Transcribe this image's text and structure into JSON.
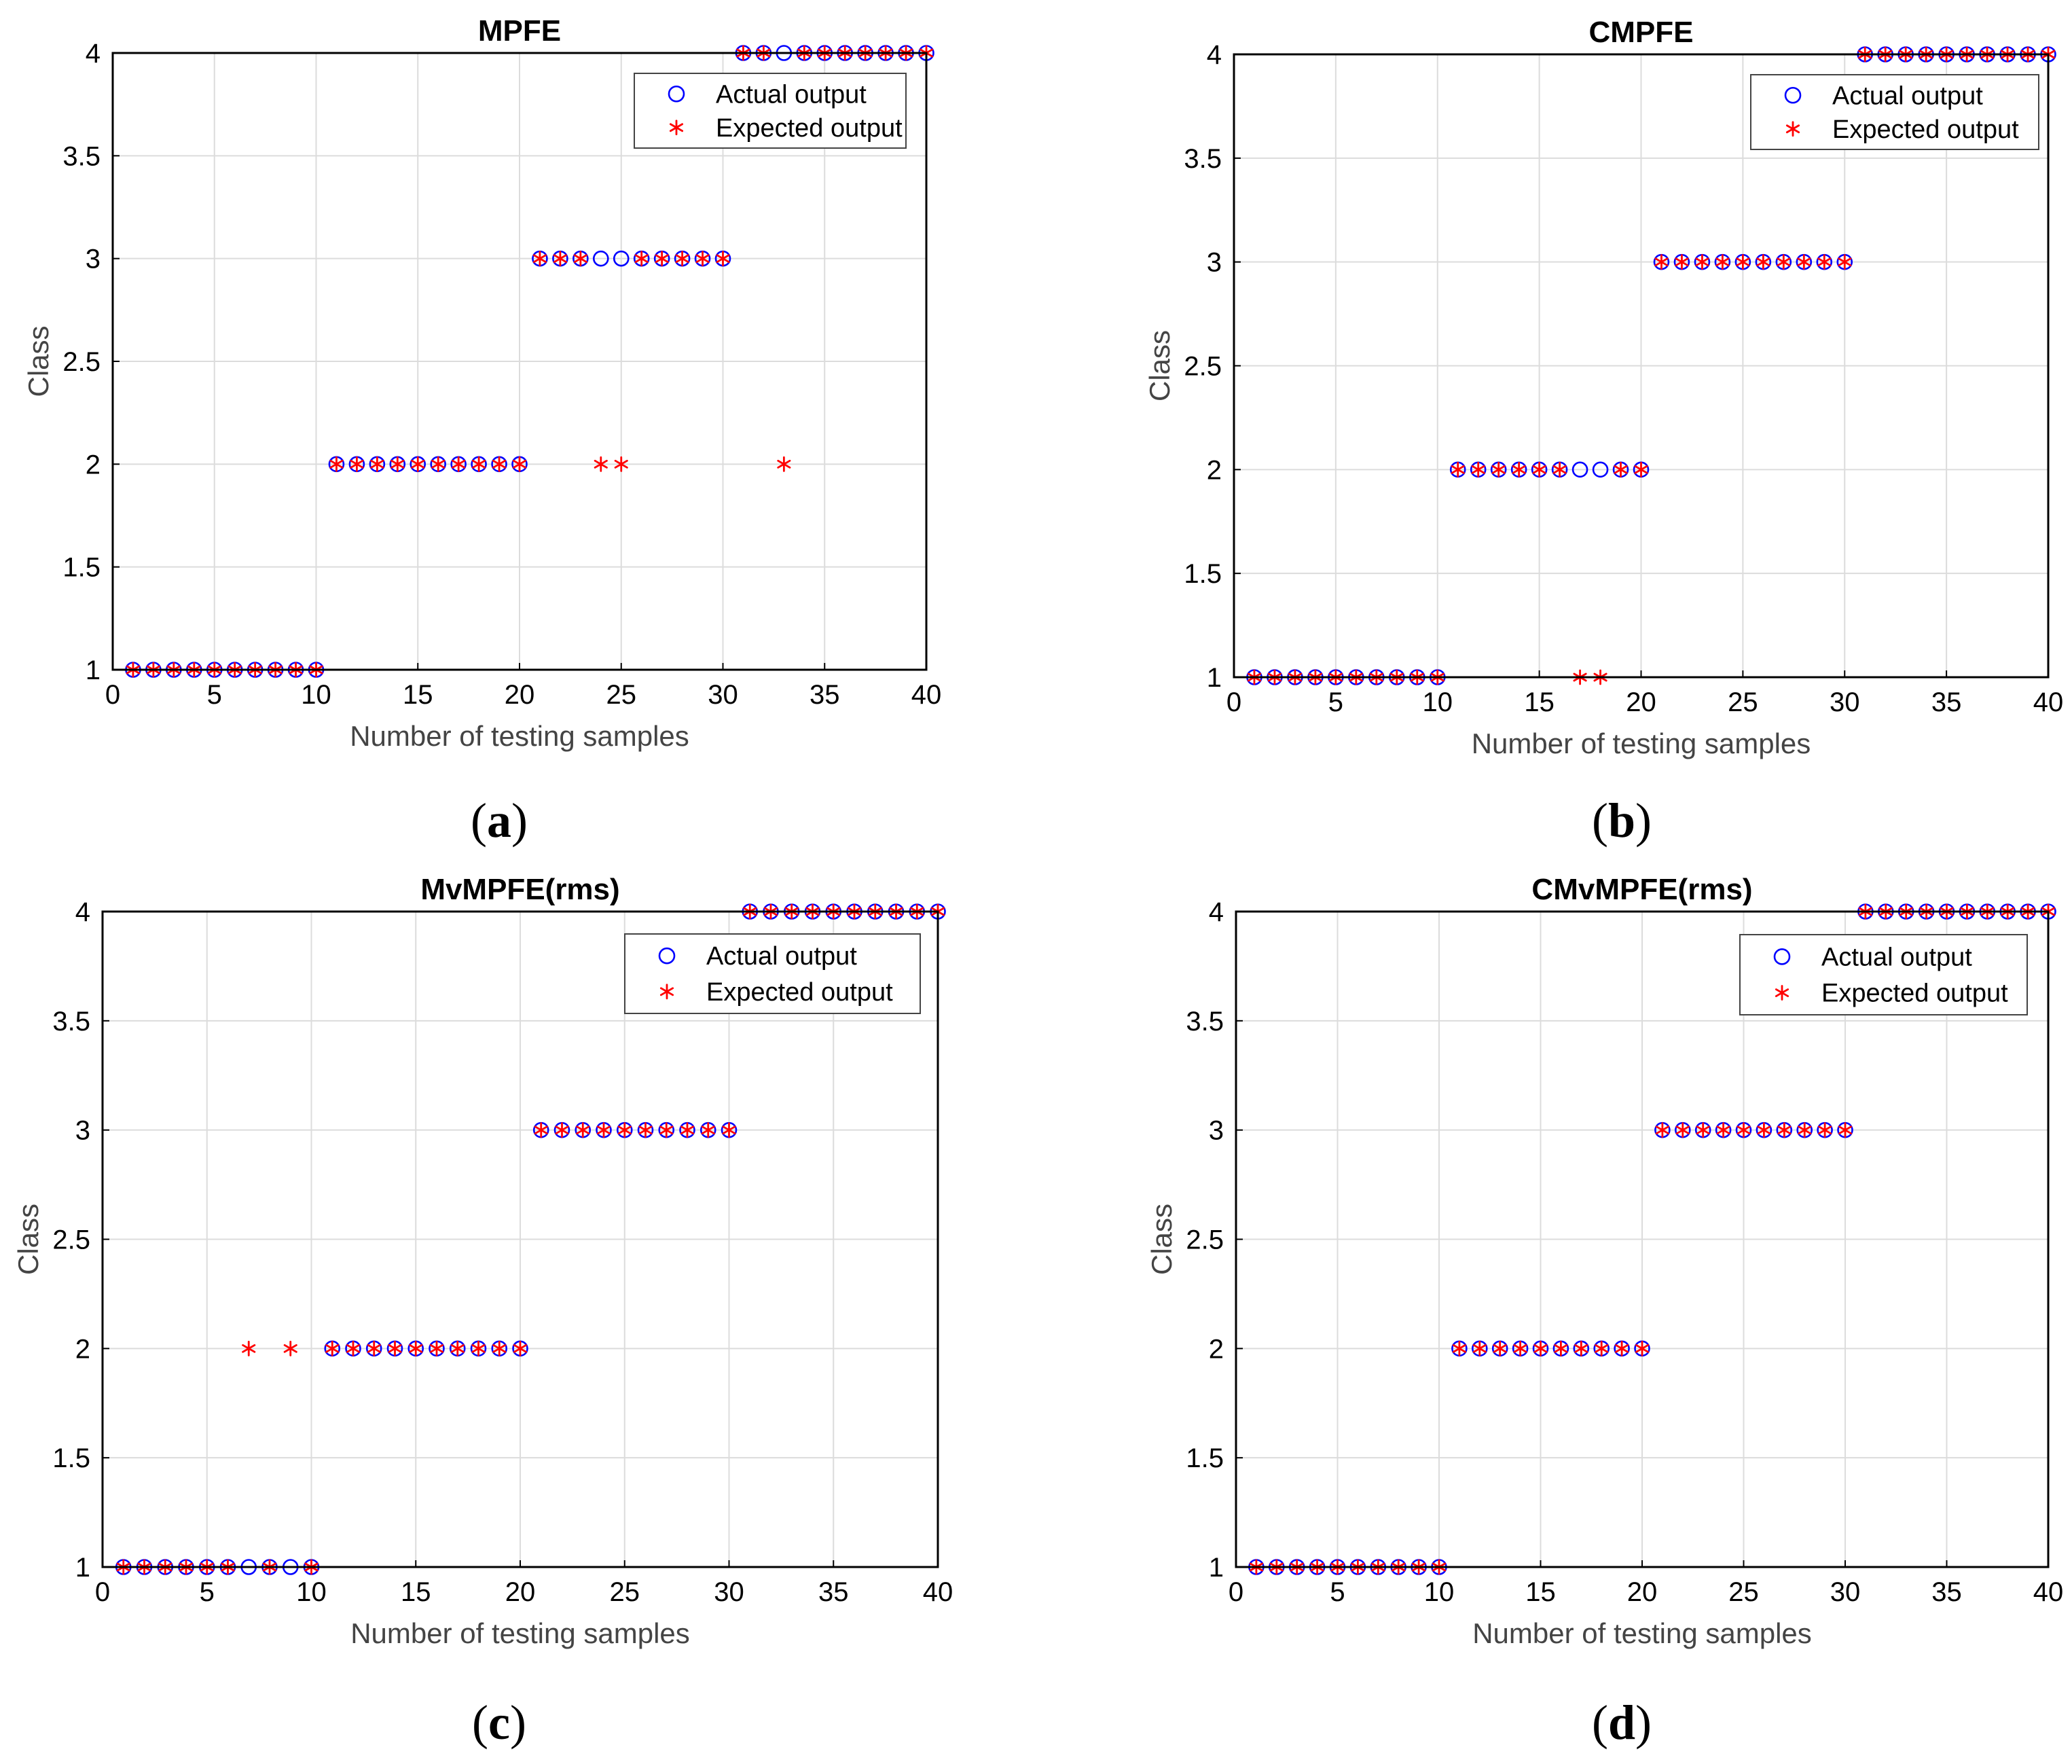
{
  "chart_data": [
    {
      "type": "scatter",
      "title": "MPFE",
      "caption": "a",
      "xlabel": "Number of testing samples",
      "ylabel": "Class",
      "xlim": [
        0,
        40
      ],
      "ylim": [
        1,
        4
      ],
      "xticks": [
        0,
        5,
        10,
        15,
        20,
        25,
        30,
        35,
        40
      ],
      "yticks": [
        1,
        1.5,
        2,
        2.5,
        3,
        3.5,
        4
      ],
      "legend": {
        "position": "top-right",
        "entries": [
          "Actual output",
          "Expected output"
        ]
      },
      "series": [
        {
          "name": "Actual output",
          "marker": "circle",
          "color": "#0000ff",
          "x": [
            1,
            2,
            3,
            4,
            5,
            6,
            7,
            8,
            9,
            10,
            11,
            12,
            13,
            14,
            15,
            16,
            17,
            18,
            19,
            20,
            21,
            22,
            23,
            24,
            25,
            26,
            27,
            28,
            29,
            30,
            31,
            32,
            33,
            34,
            35,
            36,
            37,
            38,
            39,
            40
          ],
          "y": [
            1,
            1,
            1,
            1,
            1,
            1,
            1,
            1,
            1,
            1,
            2,
            2,
            2,
            2,
            2,
            2,
            2,
            2,
            2,
            2,
            3,
            3,
            3,
            3,
            3,
            3,
            3,
            3,
            3,
            3,
            4,
            4,
            4,
            4,
            4,
            4,
            4,
            4,
            4,
            4
          ]
        },
        {
          "name": "Expected output",
          "marker": "asterisk",
          "color": "#ff0000",
          "x": [
            1,
            2,
            3,
            4,
            5,
            6,
            7,
            8,
            9,
            10,
            11,
            12,
            13,
            14,
            15,
            16,
            17,
            18,
            19,
            20,
            21,
            22,
            23,
            24,
            25,
            26,
            27,
            28,
            29,
            30,
            31,
            32,
            33,
            34,
            35,
            36,
            37,
            38,
            39,
            40
          ],
          "y": [
            1,
            1,
            1,
            1,
            1,
            1,
            1,
            1,
            1,
            1,
            2,
            2,
            2,
            2,
            2,
            2,
            2,
            2,
            2,
            2,
            3,
            3,
            3,
            2,
            2,
            3,
            3,
            3,
            3,
            3,
            4,
            4,
            2,
            4,
            4,
            4,
            4,
            4,
            4,
            4
          ]
        }
      ]
    },
    {
      "type": "scatter",
      "title": "CMPFE",
      "caption": "b",
      "xlabel": "Number of testing samples",
      "ylabel": "Class",
      "xlim": [
        0,
        40
      ],
      "ylim": [
        1,
        4
      ],
      "xticks": [
        0,
        5,
        10,
        15,
        20,
        25,
        30,
        35,
        40
      ],
      "yticks": [
        1,
        1.5,
        2,
        2.5,
        3,
        3.5,
        4
      ],
      "legend": {
        "position": "top-right",
        "entries": [
          "Actual output",
          "Expected output"
        ]
      },
      "series": [
        {
          "name": "Actual output",
          "marker": "circle",
          "color": "#0000ff",
          "x": [
            1,
            2,
            3,
            4,
            5,
            6,
            7,
            8,
            9,
            10,
            11,
            12,
            13,
            14,
            15,
            16,
            17,
            18,
            19,
            20,
            21,
            22,
            23,
            24,
            25,
            26,
            27,
            28,
            29,
            30,
            31,
            32,
            33,
            34,
            35,
            36,
            37,
            38,
            39,
            40
          ],
          "y": [
            1,
            1,
            1,
            1,
            1,
            1,
            1,
            1,
            1,
            1,
            2,
            2,
            2,
            2,
            2,
            2,
            2,
            2,
            2,
            2,
            3,
            3,
            3,
            3,
            3,
            3,
            3,
            3,
            3,
            3,
            4,
            4,
            4,
            4,
            4,
            4,
            4,
            4,
            4,
            4
          ]
        },
        {
          "name": "Expected output",
          "marker": "asterisk",
          "color": "#ff0000",
          "x": [
            1,
            2,
            3,
            4,
            5,
            6,
            7,
            8,
            9,
            10,
            11,
            12,
            13,
            14,
            15,
            16,
            17,
            18,
            19,
            20,
            21,
            22,
            23,
            24,
            25,
            26,
            27,
            28,
            29,
            30,
            31,
            32,
            33,
            34,
            35,
            36,
            37,
            38,
            39,
            40
          ],
          "y": [
            1,
            1,
            1,
            1,
            1,
            1,
            1,
            1,
            1,
            1,
            2,
            2,
            2,
            2,
            2,
            2,
            1,
            1,
            2,
            2,
            3,
            3,
            3,
            3,
            3,
            3,
            3,
            3,
            3,
            3,
            4,
            4,
            4,
            4,
            4,
            4,
            4,
            4,
            4,
            4
          ]
        }
      ]
    },
    {
      "type": "scatter",
      "title": "MvMPFE(rms)",
      "caption": "c",
      "xlabel": "Number of testing samples",
      "ylabel": "Class",
      "xlim": [
        0,
        40
      ],
      "ylim": [
        1,
        4
      ],
      "xticks": [
        0,
        5,
        10,
        15,
        20,
        25,
        30,
        35,
        40
      ],
      "yticks": [
        1,
        1.5,
        2,
        2.5,
        3,
        3.5,
        4
      ],
      "legend": {
        "position": "top-right",
        "entries": [
          "Actual output",
          "Expected output"
        ]
      },
      "series": [
        {
          "name": "Actual output",
          "marker": "circle",
          "color": "#0000ff",
          "x": [
            1,
            2,
            3,
            4,
            5,
            6,
            7,
            8,
            9,
            10,
            11,
            12,
            13,
            14,
            15,
            16,
            17,
            18,
            19,
            20,
            21,
            22,
            23,
            24,
            25,
            26,
            27,
            28,
            29,
            30,
            31,
            32,
            33,
            34,
            35,
            36,
            37,
            38,
            39,
            40
          ],
          "y": [
            1,
            1,
            1,
            1,
            1,
            1,
            1,
            1,
            1,
            1,
            2,
            2,
            2,
            2,
            2,
            2,
            2,
            2,
            2,
            2,
            3,
            3,
            3,
            3,
            3,
            3,
            3,
            3,
            3,
            3,
            4,
            4,
            4,
            4,
            4,
            4,
            4,
            4,
            4,
            4
          ]
        },
        {
          "name": "Expected output",
          "marker": "asterisk",
          "color": "#ff0000",
          "x": [
            1,
            2,
            3,
            4,
            5,
            6,
            7,
            8,
            9,
            10,
            11,
            12,
            13,
            14,
            15,
            16,
            17,
            18,
            19,
            20,
            21,
            22,
            23,
            24,
            25,
            26,
            27,
            28,
            29,
            30,
            31,
            32,
            33,
            34,
            35,
            36,
            37,
            38,
            39,
            40
          ],
          "y": [
            1,
            1,
            1,
            1,
            1,
            1,
            2,
            1,
            2,
            1,
            2,
            2,
            2,
            2,
            2,
            2,
            2,
            2,
            2,
            2,
            3,
            3,
            3,
            3,
            3,
            3,
            3,
            3,
            3,
            3,
            4,
            4,
            4,
            4,
            4,
            4,
            4,
            4,
            4,
            4
          ]
        }
      ]
    },
    {
      "type": "scatter",
      "title": "CMvMPFE(rms)",
      "caption": "d",
      "xlabel": "Number of testing samples",
      "ylabel": "Class",
      "xlim": [
        0,
        40
      ],
      "ylim": [
        1,
        4
      ],
      "xticks": [
        0,
        5,
        10,
        15,
        20,
        25,
        30,
        35,
        40
      ],
      "yticks": [
        1,
        1.5,
        2,
        2.5,
        3,
        3.5,
        4
      ],
      "legend": {
        "position": "top-right",
        "entries": [
          "Actual output",
          "Expected output"
        ]
      },
      "series": [
        {
          "name": "Actual output",
          "marker": "circle",
          "color": "#0000ff",
          "x": [
            1,
            2,
            3,
            4,
            5,
            6,
            7,
            8,
            9,
            10,
            11,
            12,
            13,
            14,
            15,
            16,
            17,
            18,
            19,
            20,
            21,
            22,
            23,
            24,
            25,
            26,
            27,
            28,
            29,
            30,
            31,
            32,
            33,
            34,
            35,
            36,
            37,
            38,
            39,
            40
          ],
          "y": [
            1,
            1,
            1,
            1,
            1,
            1,
            1,
            1,
            1,
            1,
            2,
            2,
            2,
            2,
            2,
            2,
            2,
            2,
            2,
            2,
            3,
            3,
            3,
            3,
            3,
            3,
            3,
            3,
            3,
            3,
            4,
            4,
            4,
            4,
            4,
            4,
            4,
            4,
            4,
            4
          ]
        },
        {
          "name": "Expected output",
          "marker": "asterisk",
          "color": "#ff0000",
          "x": [
            1,
            2,
            3,
            4,
            5,
            6,
            7,
            8,
            9,
            10,
            11,
            12,
            13,
            14,
            15,
            16,
            17,
            18,
            19,
            20,
            21,
            22,
            23,
            24,
            25,
            26,
            27,
            28,
            29,
            30,
            31,
            32,
            33,
            34,
            35,
            36,
            37,
            38,
            39,
            40
          ],
          "y": [
            1,
            1,
            1,
            1,
            1,
            1,
            1,
            1,
            1,
            1,
            2,
            2,
            2,
            2,
            2,
            2,
            2,
            2,
            2,
            2,
            3,
            3,
            3,
            3,
            3,
            3,
            3,
            3,
            3,
            3,
            4,
            4,
            4,
            4,
            4,
            4,
            4,
            4,
            4,
            4
          ]
        }
      ]
    }
  ]
}
